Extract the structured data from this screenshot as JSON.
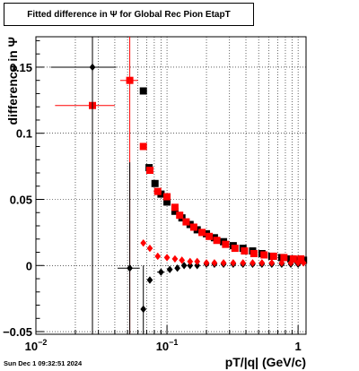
{
  "window": {
    "datestamp": "Sun Dec  1 09:32:51 2024"
  },
  "chart_data": {
    "type": "scatter",
    "title": "Fitted difference in  Ψ  for Global Rec Pion EtapT",
    "xlabel": "pT/|q| (GeV/c)",
    "ylabel": "difference in  Ψ",
    "xscale": "log",
    "xlim": [
      0.01,
      1.15
    ],
    "ylim": [
      -0.052,
      0.173
    ],
    "grid": true,
    "x_ticks": [
      {
        "value": 0.01,
        "base": "10",
        "exp": "−2"
      },
      {
        "value": 0.1,
        "base": "10",
        "exp": "−1"
      },
      {
        "value": 1,
        "base": "1",
        "exp": ""
      }
    ],
    "y_ticks": [
      {
        "value": -0.05,
        "label": "−0.05"
      },
      {
        "value": 0,
        "label": "0"
      },
      {
        "value": 0.05,
        "label": "0.05"
      },
      {
        "value": 0.1,
        "label": "0.1"
      },
      {
        "value": 0.15,
        "label": "0.15"
      }
    ],
    "series": [
      {
        "color": "#000000",
        "marker": "square",
        "points": [
          {
            "x": 0.066,
            "y": 0.132,
            "xerr": 0.002
          },
          {
            "x": 0.073,
            "y": 0.074
          },
          {
            "x": 0.081,
            "y": 0.062
          },
          {
            "x": 0.09,
            "y": 0.054
          },
          {
            "x": 0.1,
            "y": 0.048
          },
          {
            "x": 0.115,
            "y": 0.041
          },
          {
            "x": 0.13,
            "y": 0.036
          },
          {
            "x": 0.15,
            "y": 0.031
          },
          {
            "x": 0.17,
            "y": 0.027
          },
          {
            "x": 0.2,
            "y": 0.024
          },
          {
            "x": 0.23,
            "y": 0.021
          },
          {
            "x": 0.27,
            "y": 0.018
          },
          {
            "x": 0.32,
            "y": 0.015
          },
          {
            "x": 0.38,
            "y": 0.013
          },
          {
            "x": 0.45,
            "y": 0.011
          },
          {
            "x": 0.53,
            "y": 0.009
          },
          {
            "x": 0.63,
            "y": 0.007
          },
          {
            "x": 0.75,
            "y": 0.006
          },
          {
            "x": 0.88,
            "y": 0.005
          },
          {
            "x": 1.0,
            "y": 0.004
          },
          {
            "x": 1.1,
            "y": 0.004
          }
        ]
      },
      {
        "color": "#ff0000",
        "marker": "square",
        "points": [
          {
            "x": 0.027,
            "y": 0.121,
            "xerr": 0.013,
            "yerr": 0.2
          },
          {
            "x": 0.052,
            "y": 0.14,
            "xerr": 0.008,
            "yerr": 0.2
          },
          {
            "x": 0.066,
            "y": 0.09
          },
          {
            "x": 0.074,
            "y": 0.072
          },
          {
            "x": 0.085,
            "y": 0.056,
            "xerr": 0.006
          },
          {
            "x": 0.1,
            "y": 0.052
          },
          {
            "x": 0.115,
            "y": 0.044
          },
          {
            "x": 0.125,
            "y": 0.038
          },
          {
            "x": 0.14,
            "y": 0.033
          },
          {
            "x": 0.16,
            "y": 0.029
          },
          {
            "x": 0.185,
            "y": 0.025
          },
          {
            "x": 0.21,
            "y": 0.022
          },
          {
            "x": 0.24,
            "y": 0.019
          },
          {
            "x": 0.28,
            "y": 0.016
          },
          {
            "x": 0.33,
            "y": 0.013
          },
          {
            "x": 0.39,
            "y": 0.011
          },
          {
            "x": 0.46,
            "y": 0.009
          },
          {
            "x": 0.55,
            "y": 0.008
          },
          {
            "x": 0.65,
            "y": 0.007
          },
          {
            "x": 0.78,
            "y": 0.006
          },
          {
            "x": 0.92,
            "y": 0.005
          },
          {
            "x": 1.05,
            "y": 0.005
          }
        ]
      },
      {
        "color": "#000000",
        "marker": "diamond",
        "points": [
          {
            "x": 0.027,
            "y": 0.15,
            "xerr": 0.014,
            "yerr": 0.25
          },
          {
            "x": 0.052,
            "y": -0.002,
            "xerr": 0.01,
            "yerr": 0.08
          },
          {
            "x": 0.066,
            "y": -0.033,
            "yerr": 0.033
          },
          {
            "x": 0.074,
            "y": -0.011
          },
          {
            "x": 0.09,
            "y": -0.005,
            "xerr": 0.006
          },
          {
            "x": 0.105,
            "y": -0.003
          },
          {
            "x": 0.12,
            "y": -0.002
          },
          {
            "x": 0.135,
            "y": 0.0
          },
          {
            "x": 0.15,
            "y": 0.0
          },
          {
            "x": 0.17,
            "y": 0.0
          },
          {
            "x": 0.2,
            "y": 0.001
          },
          {
            "x": 0.23,
            "y": 0.001
          },
          {
            "x": 0.27,
            "y": 0.001
          },
          {
            "x": 0.32,
            "y": 0.001
          },
          {
            "x": 0.38,
            "y": 0.001
          },
          {
            "x": 0.45,
            "y": 0.001
          },
          {
            "x": 0.53,
            "y": 0.001
          },
          {
            "x": 0.63,
            "y": 0.001
          },
          {
            "x": 0.75,
            "y": 0.001
          },
          {
            "x": 0.88,
            "y": 0.001
          },
          {
            "x": 1.0,
            "y": 0.001
          }
        ]
      },
      {
        "color": "#ff0000",
        "marker": "diamond",
        "points": [
          {
            "x": 0.066,
            "y": 0.017
          },
          {
            "x": 0.074,
            "y": 0.013
          },
          {
            "x": 0.085,
            "y": 0.007
          },
          {
            "x": 0.1,
            "y": 0.006
          },
          {
            "x": 0.115,
            "y": 0.005
          },
          {
            "x": 0.13,
            "y": 0.004
          },
          {
            "x": 0.15,
            "y": 0.003
          },
          {
            "x": 0.17,
            "y": 0.003
          },
          {
            "x": 0.2,
            "y": 0.002
          },
          {
            "x": 0.23,
            "y": 0.002
          },
          {
            "x": 0.27,
            "y": 0.002
          },
          {
            "x": 0.32,
            "y": 0.002
          },
          {
            "x": 0.38,
            "y": 0.002
          },
          {
            "x": 0.45,
            "y": 0.002
          },
          {
            "x": 0.53,
            "y": 0.002
          },
          {
            "x": 0.63,
            "y": 0.002
          },
          {
            "x": 0.75,
            "y": 0.002
          },
          {
            "x": 0.88,
            "y": 0.002
          },
          {
            "x": 1.0,
            "y": 0.002
          },
          {
            "x": 1.1,
            "y": 0.002
          }
        ]
      }
    ]
  }
}
